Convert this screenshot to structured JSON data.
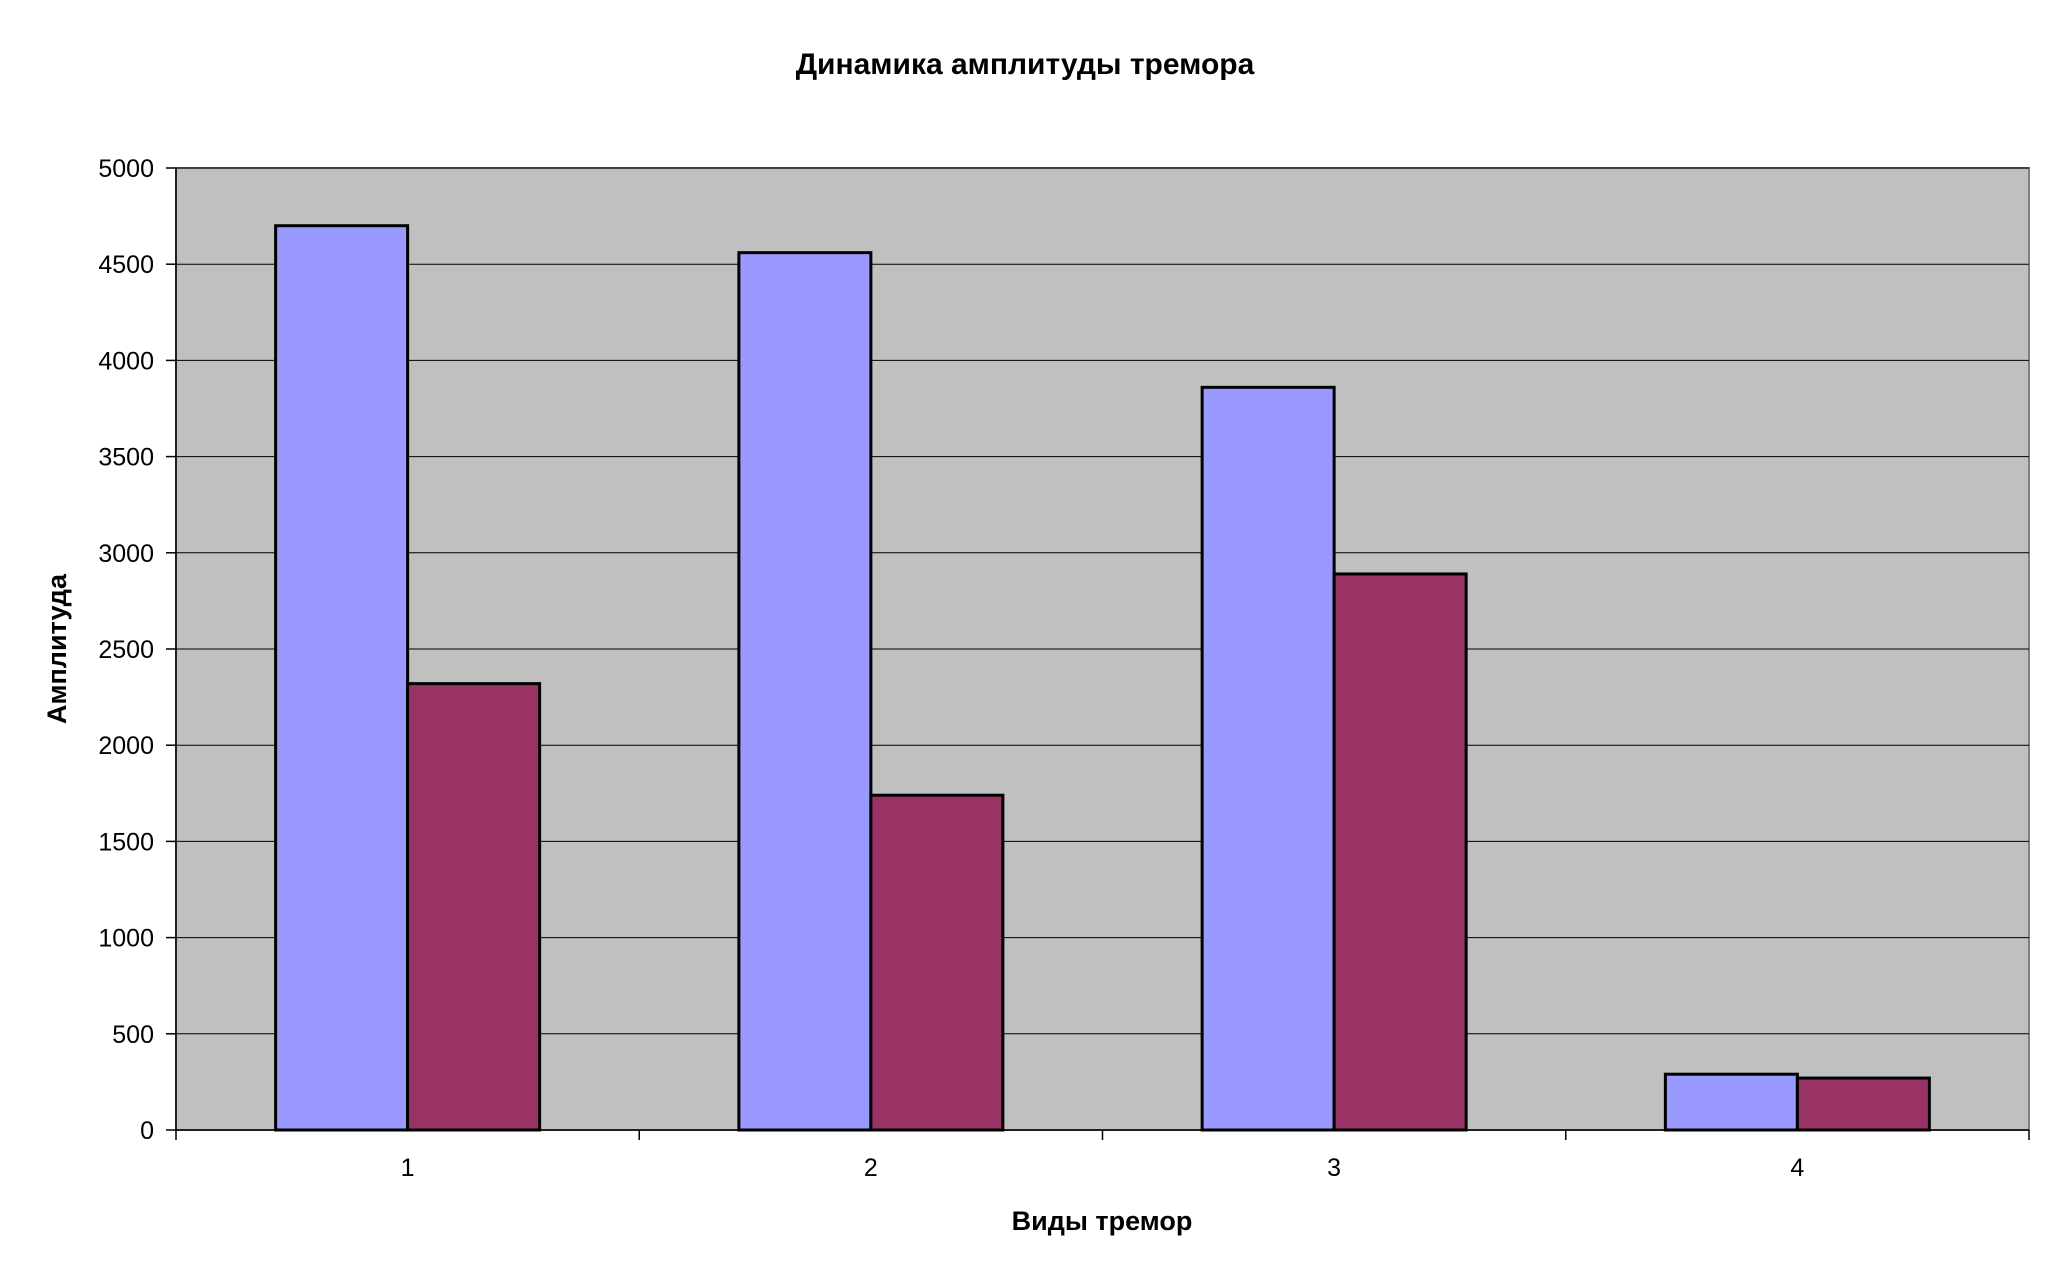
{
  "chart_data": {
    "type": "bar",
    "title": "Динамика амплитуды тремора",
    "xlabel": "Виды тремор",
    "ylabel": "Амплитуда",
    "categories": [
      "1",
      "2",
      "3",
      "4"
    ],
    "series": [
      {
        "values": [
          4700,
          4560,
          3860,
          290
        ],
        "color": "#9999FF"
      },
      {
        "values": [
          2320,
          1740,
          2890,
          270
        ],
        "color": "#993366"
      }
    ],
    "ylim": [
      0,
      5000
    ],
    "yticks": [
      0,
      500,
      1000,
      1500,
      2000,
      2500,
      3000,
      3500,
      4000,
      4500,
      5000
    ],
    "grid": true,
    "legend": "none",
    "plot_background": "#C0C0C0"
  }
}
